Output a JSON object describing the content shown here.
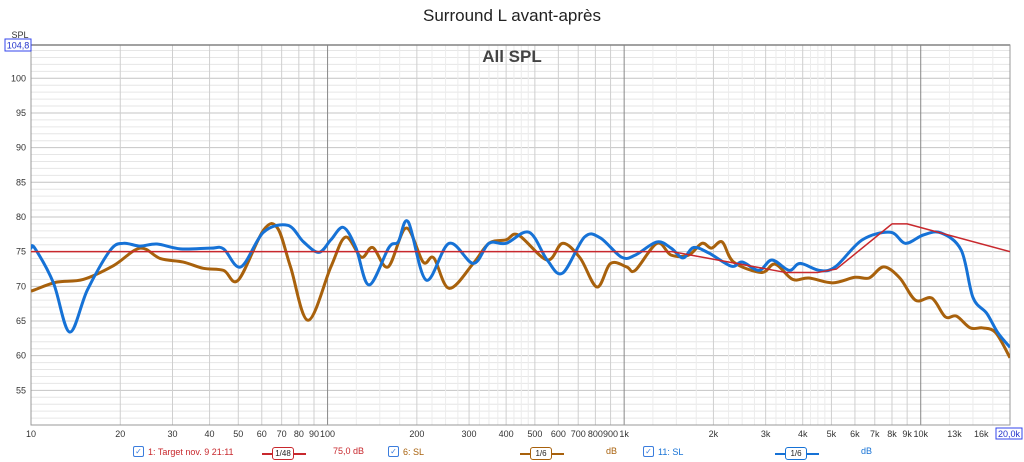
{
  "title": "Surround L avant-après",
  "chart_data": {
    "type": "line",
    "title": "Surround L avant-après",
    "subtitle": "All SPL",
    "ylabel": "SPL",
    "ymax_label": "104,8",
    "xscale": "log",
    "xlim": [
      10,
      20000
    ],
    "ylim": [
      50,
      104.8
    ],
    "grid": true,
    "x_tick_labels": [
      {
        "v": 10,
        "t": "10"
      },
      {
        "v": 20,
        "t": "20"
      },
      {
        "v": 30,
        "t": "30"
      },
      {
        "v": 40,
        "t": "40"
      },
      {
        "v": 50,
        "t": "50"
      },
      {
        "v": 60,
        "t": "60"
      },
      {
        "v": 70,
        "t": "70"
      },
      {
        "v": 80,
        "t": "80"
      },
      {
        "v": 90,
        "t": "90"
      },
      {
        "v": 100,
        "t": "100"
      },
      {
        "v": 200,
        "t": "200"
      },
      {
        "v": 300,
        "t": "300"
      },
      {
        "v": 400,
        "t": "400"
      },
      {
        "v": 500,
        "t": "500"
      },
      {
        "v": 600,
        "t": "600"
      },
      {
        "v": 700,
        "t": "700"
      },
      {
        "v": 800,
        "t": "800"
      },
      {
        "v": 900,
        "t": "900"
      },
      {
        "v": 1000,
        "t": "1k"
      },
      {
        "v": 2000,
        "t": "2k"
      },
      {
        "v": 3000,
        "t": "3k"
      },
      {
        "v": 4000,
        "t": "4k"
      },
      {
        "v": 5000,
        "t": "5k"
      },
      {
        "v": 6000,
        "t": "6k"
      },
      {
        "v": 7000,
        "t": "7k"
      },
      {
        "v": 8000,
        "t": "8k"
      },
      {
        "v": 9000,
        "t": "9k"
      },
      {
        "v": 10000,
        "t": "10k"
      },
      {
        "v": 13000,
        "t": "13k"
      },
      {
        "v": 16000,
        "t": "16k"
      },
      {
        "v": 20000,
        "t": "20,0k"
      }
    ],
    "y_ticks": [
      55,
      60,
      65,
      70,
      75,
      80,
      85,
      90,
      95,
      100
    ],
    "series": [
      {
        "name": "1: Target nov. 9 21:11",
        "color": "#c8282d",
        "smoothing": "1/48",
        "level": "75,0 dB",
        "width": 1.5,
        "points": [
          [
            10,
            75
          ],
          [
            1450,
            75
          ],
          [
            3500,
            72
          ],
          [
            4500,
            72
          ],
          [
            5200,
            72.5
          ],
          [
            8000,
            79
          ],
          [
            9000,
            79
          ],
          [
            20000,
            75
          ]
        ]
      },
      {
        "name": "6: SL",
        "color": "#a8610c",
        "smoothing": "1/6",
        "level": "dB",
        "width": 3,
        "points": [
          [
            10,
            69.3
          ],
          [
            10.3,
            69.5
          ],
          [
            12.2,
            70.6
          ],
          [
            15,
            71
          ],
          [
            19,
            73
          ],
          [
            23.3,
            75.5
          ],
          [
            27.3,
            74
          ],
          [
            32.6,
            73.5
          ],
          [
            38.1,
            72.6
          ],
          [
            44.6,
            72.3
          ],
          [
            50,
            70.9
          ],
          [
            60.8,
            78.1
          ],
          [
            67.8,
            78.4
          ],
          [
            75,
            72.8
          ],
          [
            86,
            65.1
          ],
          [
            102.6,
            72.8
          ],
          [
            115,
            77.1
          ],
          [
            130,
            74.2
          ],
          [
            142,
            75.6
          ],
          [
            160,
            72.8
          ],
          [
            184,
            78.4
          ],
          [
            210,
            73.5
          ],
          [
            228,
            74.1
          ],
          [
            257,
            69.7
          ],
          [
            310,
            73.3
          ],
          [
            350,
            76.2
          ],
          [
            400,
            76.7
          ],
          [
            440,
            77.4
          ],
          [
            550,
            73.8
          ],
          [
            620,
            76.2
          ],
          [
            710,
            74.1
          ],
          [
            810,
            69.9
          ],
          [
            900,
            73.3
          ],
          [
            1020,
            72.8
          ],
          [
            1090,
            72.3
          ],
          [
            1290,
            76.2
          ],
          [
            1440,
            74.5
          ],
          [
            1650,
            74.5
          ],
          [
            1830,
            76.2
          ],
          [
            1970,
            75.5
          ],
          [
            2140,
            76.4
          ],
          [
            2340,
            73.5
          ],
          [
            2900,
            72
          ],
          [
            3230,
            73.2
          ],
          [
            3700,
            71
          ],
          [
            4200,
            71.2
          ],
          [
            5050,
            70.5
          ],
          [
            6000,
            71.3
          ],
          [
            6700,
            71.2
          ],
          [
            7500,
            72.8
          ],
          [
            8500,
            71.2
          ],
          [
            9600,
            68
          ],
          [
            10900,
            68.3
          ],
          [
            12100,
            65.6
          ],
          [
            13200,
            65.7
          ],
          [
            14700,
            64
          ],
          [
            16200,
            64
          ],
          [
            17900,
            63.3
          ],
          [
            20000,
            59.7
          ]
        ]
      },
      {
        "name": "11: SL",
        "color": "#1672d6",
        "smoothing": "1/6",
        "level": "dB",
        "width": 3,
        "points": [
          [
            10,
            75.5
          ],
          [
            10.3,
            75.5
          ],
          [
            11.9,
            70.5
          ],
          [
            13.5,
            63.4
          ],
          [
            15.5,
            69.5
          ],
          [
            18.5,
            75.2
          ],
          [
            20.5,
            76.2
          ],
          [
            23.3,
            75.8
          ],
          [
            26.6,
            76.1
          ],
          [
            31.9,
            75.4
          ],
          [
            40.3,
            75.5
          ],
          [
            44.6,
            75.4
          ],
          [
            51,
            72.8
          ],
          [
            60.8,
            77.8
          ],
          [
            73.4,
            78.8
          ],
          [
            83,
            76.4
          ],
          [
            93.5,
            74.9
          ],
          [
            102.6,
            76.7
          ],
          [
            113,
            78.5
          ],
          [
            124.5,
            75.6
          ],
          [
            138,
            70.2
          ],
          [
            161,
            75.6
          ],
          [
            173,
            76.4
          ],
          [
            187,
            79.3
          ],
          [
            215,
            70.9
          ],
          [
            257,
            76.2
          ],
          [
            310,
            73.3
          ],
          [
            350,
            76.2
          ],
          [
            400,
            76.2
          ],
          [
            478,
            77.8
          ],
          [
            550,
            73.8
          ],
          [
            620,
            71.9
          ],
          [
            735,
            77.1
          ],
          [
            830,
            77
          ],
          [
            980,
            74.2
          ],
          [
            1090,
            74.5
          ],
          [
            1290,
            76.4
          ],
          [
            1440,
            75.5
          ],
          [
            1580,
            74.1
          ],
          [
            1715,
            75.6
          ],
          [
            1930,
            74.8
          ],
          [
            2300,
            72.9
          ],
          [
            2500,
            73.5
          ],
          [
            2850,
            72.3
          ],
          [
            3150,
            73.8
          ],
          [
            3600,
            72.3
          ],
          [
            3920,
            73.3
          ],
          [
            4550,
            72.3
          ],
          [
            5150,
            72.8
          ],
          [
            6350,
            76.7
          ],
          [
            7900,
            77.8
          ],
          [
            8880,
            76.2
          ],
          [
            10200,
            77.4
          ],
          [
            11700,
            77.7
          ],
          [
            13700,
            75.2
          ],
          [
            15000,
            68.4
          ],
          [
            16700,
            66.1
          ],
          [
            18200,
            63.3
          ],
          [
            20000,
            61.2
          ]
        ]
      }
    ]
  }
}
